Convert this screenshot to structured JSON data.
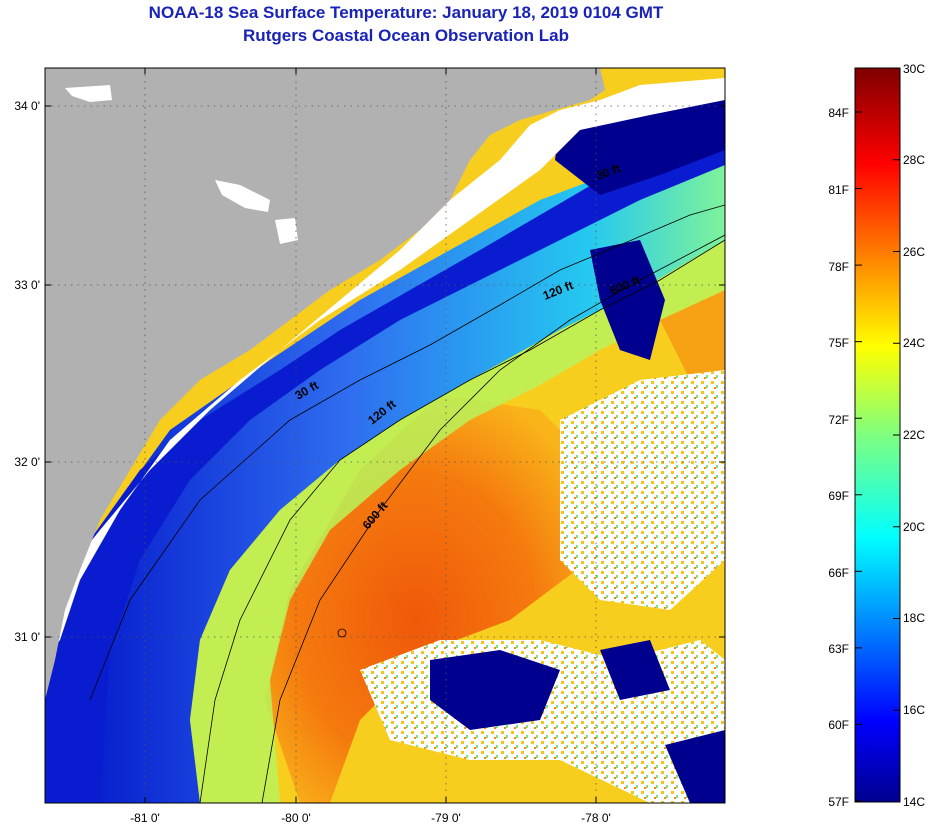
{
  "header": {
    "title": "NOAA-18 Sea Surface Temperature:  January 18, 2019 0104 GMT",
    "subtitle": "Rutgers Coastal Ocean Observation Lab"
  },
  "map": {
    "lat_ticks": [
      "34 0'",
      "33 0'",
      "32 0'",
      "31 0'"
    ],
    "lon_ticks": [
      "-81 0'",
      "-80 0'",
      "-79 0'",
      "-78 0'"
    ],
    "contours": [
      "30 ft",
      "120 ft",
      "600 ft",
      "30 ft",
      "120 ft",
      "600 ft"
    ],
    "colors": {
      "land": "#b1b1b1",
      "no_data": "#ffffff",
      "cold": "#00008f",
      "warm": "#f06c0c"
    }
  },
  "colorbar": {
    "fahrenheit": [
      "84F",
      "81F",
      "78F",
      "75F",
      "72F",
      "69F",
      "66F",
      "63F",
      "60F",
      "57F"
    ],
    "celsius": [
      "30C",
      "28C",
      "26C",
      "24C",
      "22C",
      "20C",
      "18C",
      "16C",
      "14C"
    ],
    "range_c": [
      14,
      30
    ]
  }
}
